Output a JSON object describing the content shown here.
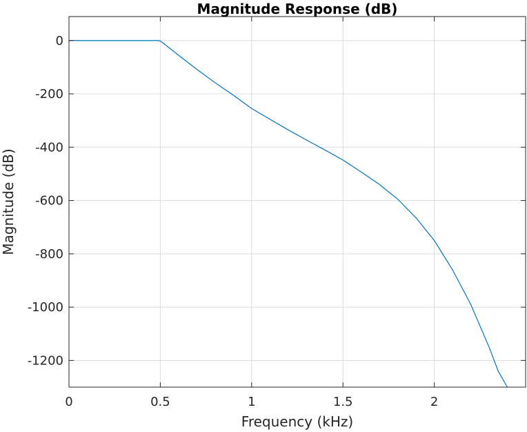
{
  "chart_data": {
    "type": "line",
    "title": "Magnitude Response (dB)",
    "xlabel": "Frequency (kHz)",
    "ylabel": "Magnitude (dB)",
    "xlim": [
      0,
      2.5
    ],
    "ylim": [
      -1300,
      90
    ],
    "xticks": [
      0,
      0.5,
      1,
      1.5,
      2
    ],
    "xtick_labels": [
      "0",
      "0.5",
      "1",
      "1.5",
      "2"
    ],
    "yticks": [
      0,
      -200,
      -400,
      -600,
      -800,
      -1000,
      -1200
    ],
    "ytick_labels": [
      "0",
      "-200",
      "-400",
      "-600",
      "-800",
      "-1000",
      "-1200"
    ],
    "grid": true,
    "colors": {
      "line": "#0072BD",
      "grid": "#dcdcdc",
      "axes": "#262626"
    },
    "series": [
      {
        "x": [
          0,
          0.1,
          0.2,
          0.3,
          0.4,
          0.45,
          0.49,
          0.5,
          0.52,
          0.55,
          0.6,
          0.7,
          0.8,
          0.9,
          1.0,
          1.1,
          1.2,
          1.3,
          1.4,
          1.5,
          1.6,
          1.7,
          1.8,
          1.9,
          2.0,
          2.1,
          2.2,
          2.3,
          2.35,
          2.4
        ],
        "y": [
          0,
          0,
          0,
          0,
          0,
          0,
          0,
          -2,
          -12,
          -28,
          -55,
          -108,
          -158,
          -205,
          -255,
          -295,
          -335,
          -373,
          -410,
          -448,
          -493,
          -540,
          -595,
          -665,
          -750,
          -860,
          -990,
          -1150,
          -1240,
          -1300
        ]
      }
    ]
  }
}
